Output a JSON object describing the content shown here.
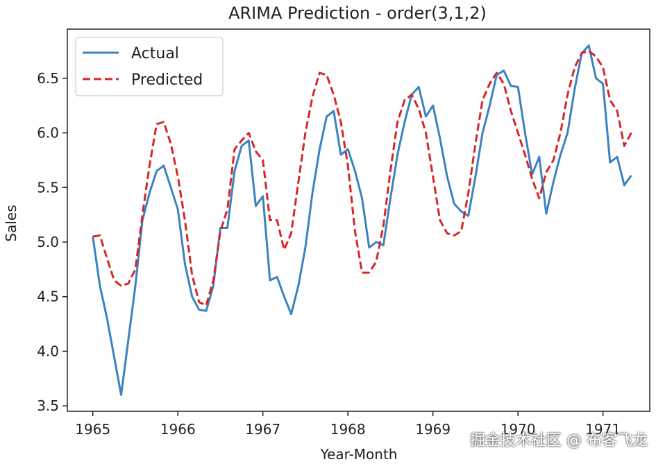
{
  "chart_data": {
    "type": "line",
    "title": "ARIMA Prediction - order(3,1,2)",
    "xlabel": "Year-Month",
    "ylabel": "Sales",
    "xlim": [
      1964.7,
      1971.55
    ],
    "ylim": [
      3.45,
      6.95
    ],
    "xticks": [
      1965,
      1966,
      1967,
      1968,
      1969,
      1970,
      1971
    ],
    "yticks": [
      3.5,
      4.0,
      4.5,
      5.0,
      5.5,
      6.0,
      6.5
    ],
    "grid": false,
    "legend_position": "top-left",
    "series": [
      {
        "name": "Actual",
        "color": "#3b82c0",
        "style": "solid",
        "x": [
          1965.0,
          1965.083,
          1965.167,
          1965.25,
          1965.333,
          1965.417,
          1965.5,
          1965.583,
          1965.667,
          1965.75,
          1965.833,
          1965.917,
          1966.0,
          1966.083,
          1966.167,
          1966.25,
          1966.333,
          1966.417,
          1966.5,
          1966.583,
          1966.667,
          1966.75,
          1966.833,
          1966.917,
          1967.0,
          1967.083,
          1967.167,
          1967.25,
          1967.333,
          1967.417,
          1967.5,
          1967.583,
          1967.667,
          1967.75,
          1967.833,
          1967.917,
          1968.0,
          1968.083,
          1968.167,
          1968.25,
          1968.333,
          1968.417,
          1968.5,
          1968.583,
          1968.667,
          1968.75,
          1968.833,
          1968.917,
          1969.0,
          1969.083,
          1969.167,
          1969.25,
          1969.333,
          1969.417,
          1969.5,
          1969.583,
          1969.667,
          1969.75,
          1969.833,
          1969.917,
          1970.0,
          1970.083,
          1970.167,
          1970.25,
          1970.333,
          1970.417,
          1970.5,
          1970.583,
          1970.667,
          1970.75,
          1970.833,
          1970.917,
          1971.0,
          1971.083,
          1971.167,
          1971.25,
          1971.333
        ],
        "values": [
          5.05,
          4.6,
          4.3,
          3.95,
          3.6,
          4.1,
          4.6,
          5.2,
          5.45,
          5.65,
          5.7,
          5.5,
          5.3,
          4.8,
          4.5,
          4.38,
          4.37,
          4.6,
          5.13,
          5.13,
          5.65,
          5.88,
          5.93,
          5.33,
          5.42,
          4.65,
          4.68,
          4.5,
          4.34,
          4.6,
          4.95,
          5.45,
          5.85,
          6.15,
          6.2,
          5.8,
          5.85,
          5.65,
          5.4,
          4.95,
          5.0,
          4.97,
          5.4,
          5.8,
          6.1,
          6.35,
          6.42,
          6.15,
          6.25,
          5.95,
          5.6,
          5.35,
          5.28,
          5.24,
          5.6,
          6.0,
          6.25,
          6.53,
          6.57,
          6.43,
          6.42,
          6.0,
          5.62,
          5.78,
          5.26,
          5.55,
          5.8,
          6.0,
          6.4,
          6.73,
          6.8,
          6.5,
          6.45,
          5.73,
          5.78,
          5.52,
          5.61
        ]
      },
      {
        "name": "Predicted",
        "color": "#d62728",
        "style": "dashed",
        "x": [
          1965.0,
          1965.083,
          1965.167,
          1965.25,
          1965.333,
          1965.417,
          1965.5,
          1965.583,
          1965.667,
          1965.75,
          1965.833,
          1965.917,
          1966.0,
          1966.083,
          1966.167,
          1966.25,
          1966.333,
          1966.417,
          1966.5,
          1966.583,
          1966.667,
          1966.75,
          1966.833,
          1966.917,
          1967.0,
          1967.083,
          1967.167,
          1967.25,
          1967.333,
          1967.417,
          1967.5,
          1967.583,
          1967.667,
          1967.75,
          1967.833,
          1967.917,
          1968.0,
          1968.083,
          1968.167,
          1968.25,
          1968.333,
          1968.417,
          1968.5,
          1968.583,
          1968.667,
          1968.75,
          1968.833,
          1968.917,
          1969.0,
          1969.083,
          1969.167,
          1969.25,
          1969.333,
          1969.417,
          1969.5,
          1969.583,
          1969.667,
          1969.75,
          1969.833,
          1969.917,
          1970.0,
          1970.083,
          1970.167,
          1970.25,
          1970.333,
          1970.417,
          1970.5,
          1970.583,
          1970.667,
          1970.75,
          1970.833,
          1970.917,
          1971.0,
          1971.083,
          1971.167,
          1971.25,
          1971.333
        ],
        "values": [
          5.05,
          5.06,
          4.85,
          4.65,
          4.6,
          4.62,
          4.75,
          5.25,
          5.7,
          6.08,
          6.1,
          5.9,
          5.6,
          5.2,
          4.7,
          4.45,
          4.42,
          4.65,
          5.1,
          5.3,
          5.85,
          5.93,
          6.0,
          5.83,
          5.75,
          5.2,
          5.2,
          4.93,
          5.08,
          5.55,
          6.0,
          6.33,
          6.55,
          6.53,
          6.35,
          6.1,
          5.7,
          5.1,
          4.72,
          4.72,
          4.82,
          5.15,
          5.65,
          6.1,
          6.3,
          6.35,
          6.22,
          6.0,
          5.6,
          5.2,
          5.08,
          5.06,
          5.1,
          5.45,
          5.9,
          6.3,
          6.45,
          6.55,
          6.45,
          6.2,
          6.0,
          5.8,
          5.58,
          5.4,
          5.64,
          5.75,
          6.0,
          6.35,
          6.6,
          6.73,
          6.75,
          6.7,
          6.6,
          6.3,
          6.2,
          5.88,
          6.0
        ]
      }
    ]
  },
  "watermark": "掘金技术社区 @ 布客飞龙"
}
